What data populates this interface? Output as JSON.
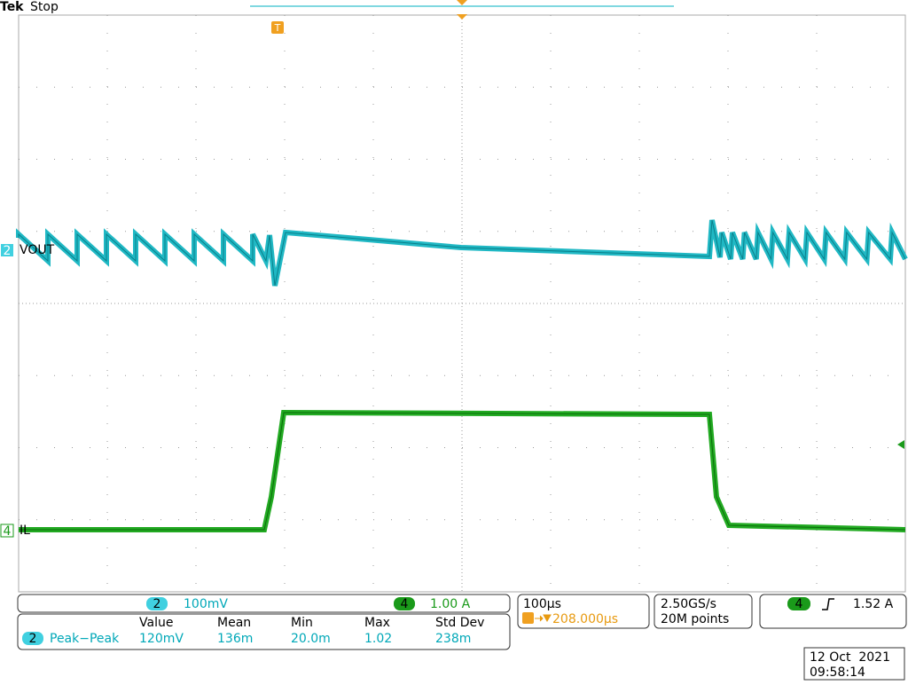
{
  "header": {
    "brand": "Tek",
    "status": "Stop"
  },
  "traces": [
    {
      "channel": "2",
      "label": "VOUT"
    },
    {
      "channel": "4",
      "label": "IL"
    }
  ],
  "trigger_marker": "T",
  "channel_settings": [
    {
      "channel": "2",
      "scale": "100mV"
    },
    {
      "channel": "4",
      "scale": "1.00 A"
    }
  ],
  "horizontal": {
    "scale": "100µs",
    "position": "208.000µs"
  },
  "acquisition": {
    "rate": "2.50GS/s",
    "length": "20M points"
  },
  "trigger": {
    "channel": "4",
    "level": "1.52 A"
  },
  "measurements": {
    "headers": [
      "Value",
      "Mean",
      "Min",
      "Max",
      "Std Dev"
    ],
    "rows": [
      {
        "channel": "2",
        "name": "Peak−Peak",
        "cells": [
          "120mV",
          "136m",
          "20.0m",
          "1.02",
          "238m"
        ]
      }
    ]
  },
  "timestamp": {
    "date": "12 Oct  2021",
    "time": "09:58:14"
  }
}
